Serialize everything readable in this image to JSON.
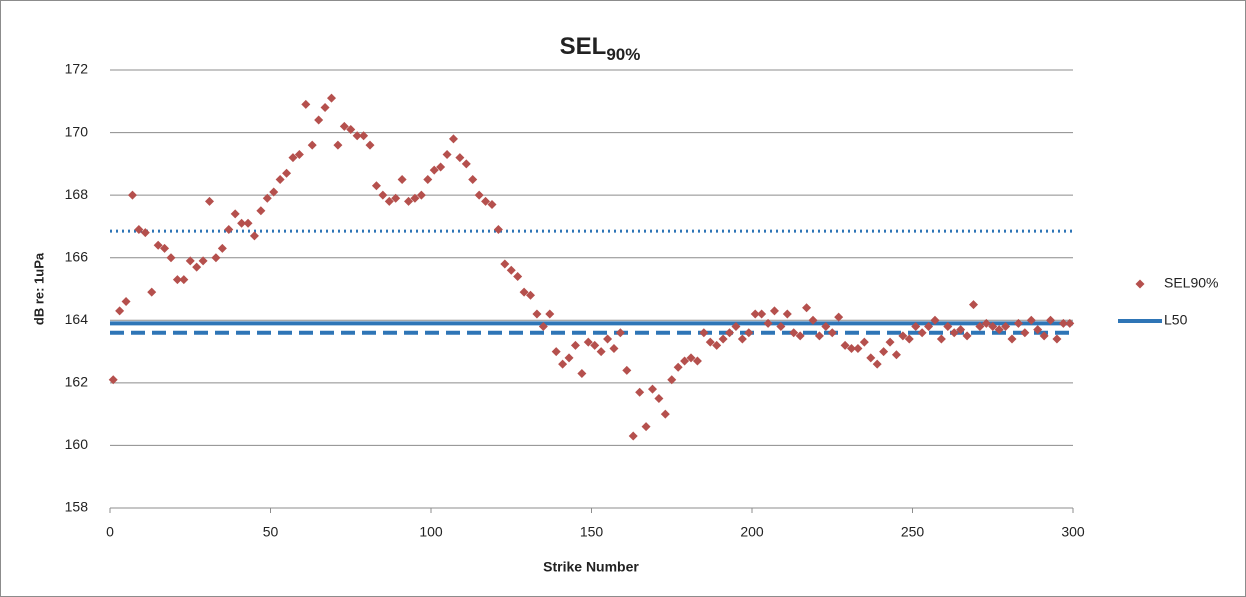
{
  "chart_data": {
    "type": "scatter",
    "title": "SEL",
    "title_subscript": "90%",
    "xlabel": "Strike Number",
    "ylabel": "dB re: 1uPa",
    "xlim": [
      0,
      300
    ],
    "xticks": [
      0,
      50,
      100,
      150,
      200,
      250,
      300
    ],
    "ylim": [
      158,
      172
    ],
    "yticks": [
      158,
      160,
      162,
      164,
      166,
      168,
      170,
      172
    ],
    "grid": true,
    "legend": "right",
    "series": [
      {
        "name": "SEL90%",
        "color": "#b5504d",
        "x": [
          1,
          3,
          5,
          7,
          9,
          11,
          13,
          15,
          17,
          19,
          21,
          23,
          25,
          27,
          29,
          31,
          33,
          35,
          37,
          39,
          41,
          43,
          45,
          47,
          49,
          51,
          53,
          55,
          57,
          59,
          61,
          63,
          65,
          67,
          69,
          71,
          73,
          75,
          77,
          79,
          81,
          83,
          85,
          87,
          89,
          91,
          93,
          95,
          97,
          99,
          101,
          103,
          105,
          107,
          109,
          111,
          113,
          115,
          117,
          119,
          121,
          123,
          125,
          127,
          129,
          131,
          133,
          135,
          137,
          139,
          141,
          143,
          145,
          147,
          149,
          151,
          153,
          155,
          157,
          159,
          161,
          163,
          165,
          167,
          169,
          171,
          173,
          175,
          177,
          179,
          181,
          183,
          185,
          187,
          189,
          191,
          193,
          195,
          197,
          199,
          201,
          203,
          205,
          207,
          209,
          211,
          213,
          215,
          217,
          219,
          221,
          223,
          225,
          227,
          229,
          231,
          233,
          235,
          237,
          239,
          241,
          243,
          245,
          247,
          249,
          251,
          253,
          255,
          257,
          259,
          261,
          263,
          265,
          267,
          269,
          271,
          273,
          275,
          277,
          279,
          281,
          283,
          285,
          287,
          289,
          291,
          293,
          295,
          297,
          299
        ],
        "values": [
          162.1,
          164.3,
          164.6,
          168.0,
          166.9,
          166.8,
          164.9,
          166.4,
          166.3,
          166.0,
          165.3,
          165.3,
          165.9,
          165.7,
          165.9,
          167.8,
          166.0,
          166.3,
          166.9,
          167.4,
          167.1,
          167.1,
          166.7,
          167.5,
          167.9,
          168.1,
          168.5,
          168.7,
          169.2,
          169.3,
          170.9,
          169.6,
          170.4,
          170.8,
          171.1,
          169.6,
          170.2,
          170.1,
          169.9,
          169.9,
          169.6,
          168.3,
          168.0,
          167.8,
          167.9,
          168.5,
          167.8,
          167.9,
          168.0,
          168.5,
          168.8,
          168.9,
          169.3,
          169.8,
          169.2,
          169.0,
          168.5,
          168.0,
          167.8,
          167.7,
          166.9,
          165.8,
          165.6,
          165.4,
          164.9,
          164.8,
          164.2,
          163.8,
          164.2,
          163.0,
          162.6,
          162.8,
          163.2,
          162.3,
          163.3,
          163.2,
          163.0,
          163.4,
          163.1,
          163.6,
          162.4,
          160.3,
          161.7,
          160.6,
          161.8,
          161.5,
          161.0,
          162.1,
          162.5,
          162.7,
          162.8,
          162.7,
          163.6,
          163.3,
          163.2,
          163.4,
          163.6,
          163.8,
          163.4,
          163.6,
          164.2,
          164.2,
          163.9,
          164.3,
          163.8,
          164.2,
          163.6,
          163.5,
          164.4,
          164.0,
          163.5,
          163.8,
          163.6,
          164.1,
          163.2,
          163.1,
          163.1,
          163.3,
          162.8,
          162.6,
          163.0,
          163.3,
          162.9,
          163.5,
          163.4,
          163.8,
          163.6,
          163.8,
          164.0,
          163.4,
          163.8,
          163.6,
          163.7,
          163.5,
          164.5,
          163.8,
          163.9,
          163.8,
          163.7,
          163.8,
          163.4,
          163.9,
          163.6,
          164.0,
          163.7,
          163.5,
          164.0,
          163.4,
          163.9,
          163.9
        ]
      }
    ],
    "lines": [
      {
        "name": "L50",
        "y": 163.9,
        "color": "#2e75b6",
        "style": "solid"
      },
      {
        "y": 166.85,
        "color": "#2e75b6",
        "style": "dotted"
      },
      {
        "y": 163.6,
        "color": "#2e75b6",
        "style": "dashed"
      }
    ]
  }
}
